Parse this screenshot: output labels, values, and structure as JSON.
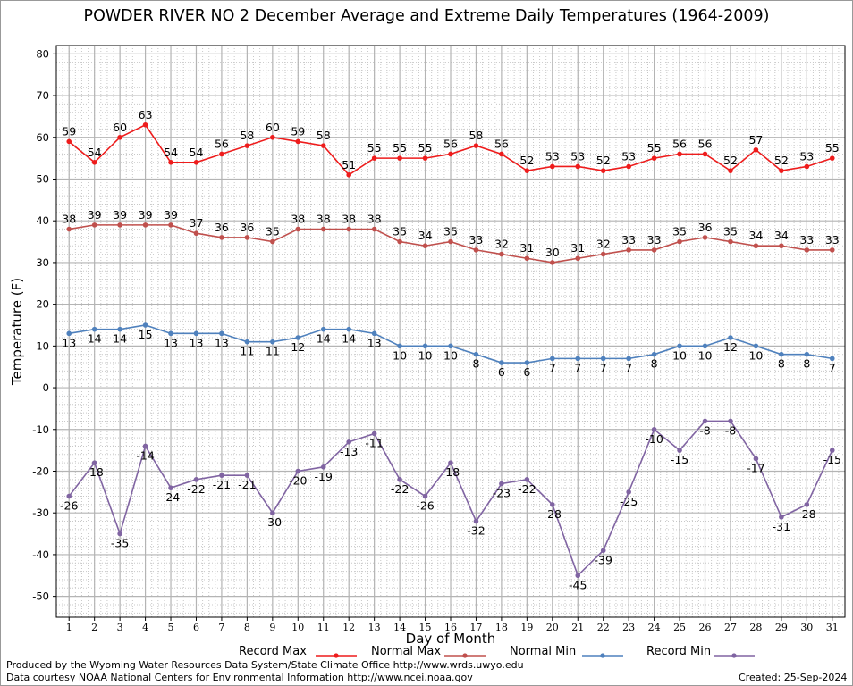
{
  "chart_data": {
    "type": "line",
    "title": "POWDER RIVER NO 2 December Average and Extreme Daily Temperatures (1964-2009)",
    "xlabel": "Day of Month",
    "ylabel": "Temperature (F)",
    "x": [
      1,
      2,
      3,
      4,
      5,
      6,
      7,
      8,
      9,
      10,
      11,
      12,
      13,
      14,
      15,
      16,
      17,
      18,
      19,
      20,
      21,
      22,
      23,
      24,
      25,
      26,
      27,
      28,
      29,
      30,
      31
    ],
    "xlim": [
      0.5,
      31.5
    ],
    "ylim": [
      -55,
      82
    ],
    "yticks": [
      -50,
      -40,
      -30,
      -20,
      -10,
      0,
      10,
      20,
      30,
      40,
      50,
      60,
      70,
      80
    ],
    "grid": true,
    "series": [
      {
        "name": "Record Max",
        "color": "#ee1c1c",
        "label_pos": "above",
        "values": [
          59,
          54,
          60,
          63,
          54,
          54,
          56,
          58,
          60,
          59,
          58,
          51,
          55,
          55,
          55,
          56,
          58,
          56,
          52,
          53,
          53,
          52,
          53,
          55,
          56,
          56,
          52,
          57,
          52,
          53,
          55
        ]
      },
      {
        "name": "Normal Max",
        "color": "#c0504d",
        "label_pos": "above",
        "values": [
          38,
          39,
          39,
          39,
          39,
          37,
          36,
          36,
          35,
          38,
          38,
          38,
          38,
          35,
          34,
          35,
          33,
          32,
          31,
          30,
          31,
          32,
          33,
          33,
          35,
          36,
          35,
          34,
          34,
          33,
          33
        ]
      },
      {
        "name": "Normal Min",
        "color": "#4f81bd",
        "label_pos": "below",
        "values": [
          13,
          14,
          14,
          15,
          13,
          13,
          13,
          11,
          11,
          12,
          14,
          14,
          13,
          10,
          10,
          10,
          8,
          6,
          6,
          7,
          7,
          7,
          7,
          8,
          10,
          10,
          12,
          10,
          8,
          8,
          7
        ]
      },
      {
        "name": "Record Min",
        "color": "#8064a2",
        "label_pos": "below",
        "values": [
          -26,
          -18,
          -35,
          -14,
          -24,
          -22,
          -21,
          -21,
          -30,
          -20,
          -19,
          -13,
          -11,
          -22,
          -26,
          -18,
          -32,
          -23,
          -22,
          -28,
          -45,
          -39,
          -25,
          -10,
          -15,
          -8,
          -8,
          -17,
          -31,
          -28,
          -15
        ]
      }
    ]
  },
  "footer": {
    "produced_by": "Produced by the Wyoming Water Resources Data System/State Climate Office http://www.wrds.uwyo.edu",
    "courtesy": "Data courtesy NOAA National Centers for Environmental Information http://www.ncei.noaa.gov",
    "created": "Created:  25-Sep-2024"
  }
}
